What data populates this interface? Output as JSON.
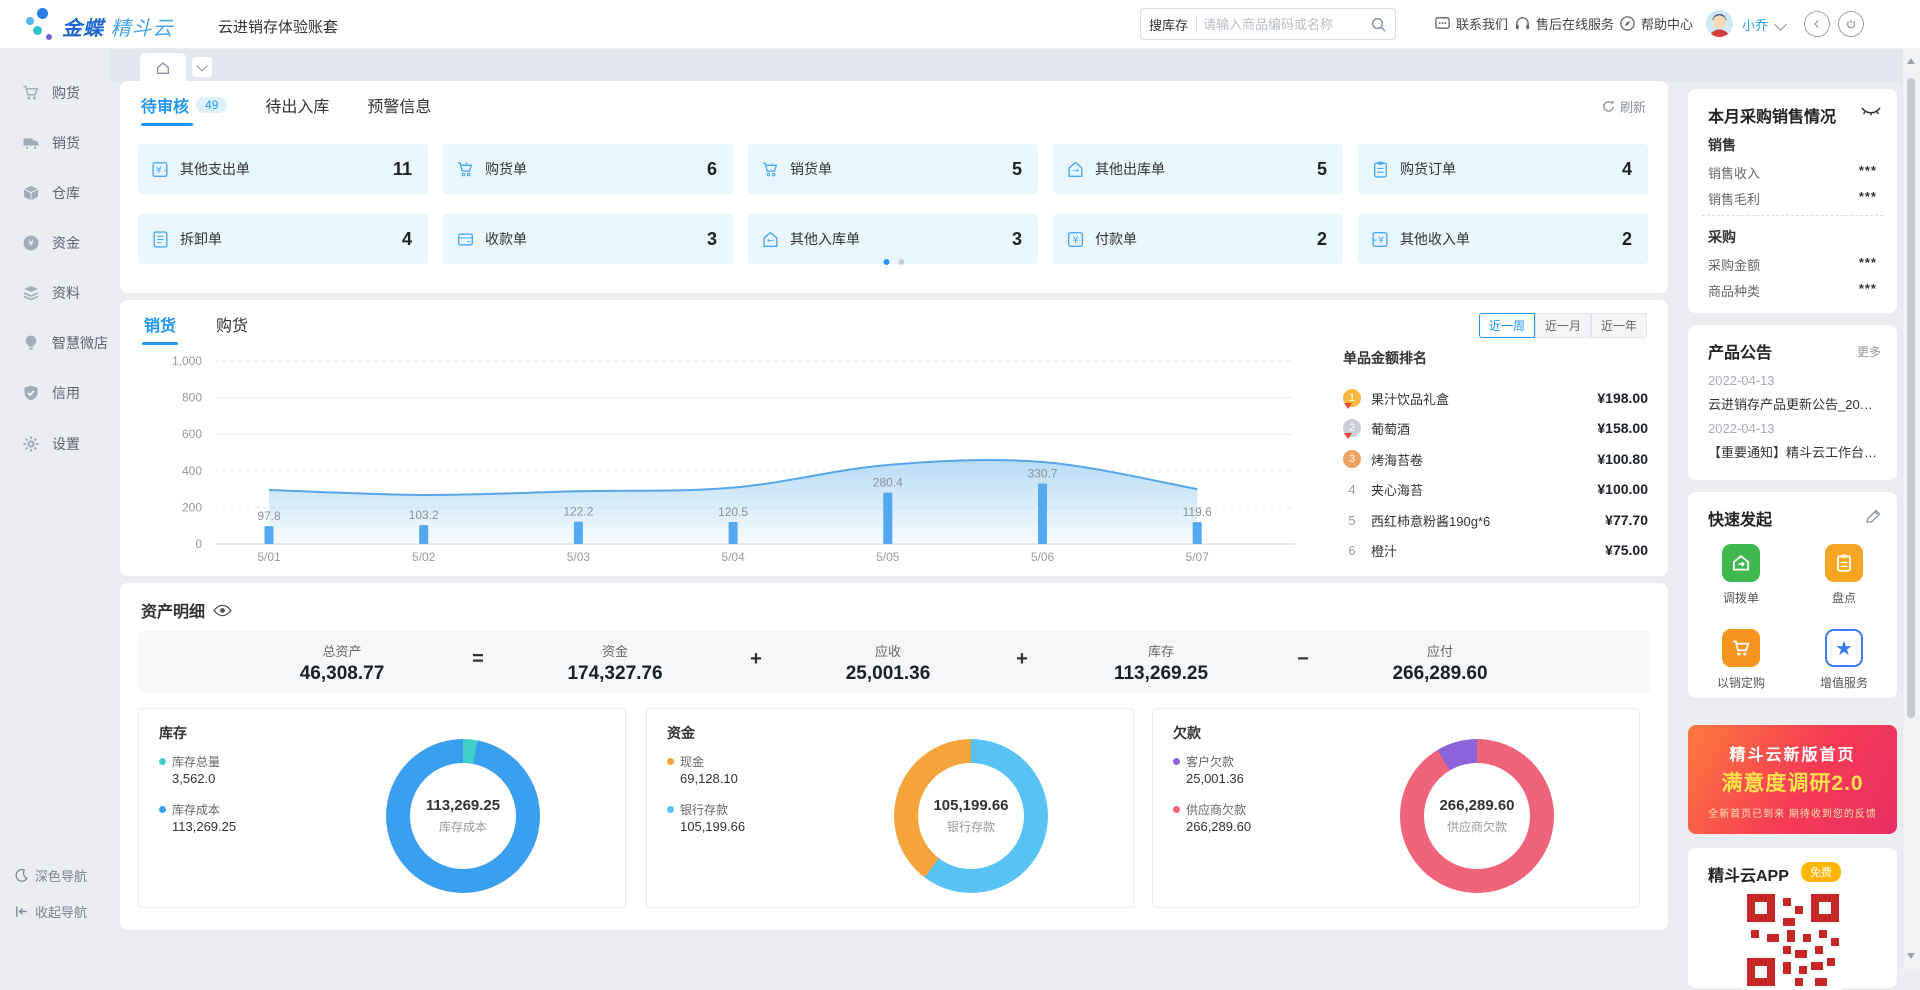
{
  "header": {
    "brand_bold": "金蝶",
    "brand_light": "精斗云",
    "account_title": "云进销存体验账套",
    "search": {
      "prefix": "搜库存",
      "placeholder": "请输入商品编码或名称"
    },
    "links": [
      {
        "label": "联系我们"
      },
      {
        "label": "售后在线服务"
      },
      {
        "label": "帮助中心"
      }
    ],
    "user": {
      "name": "小乔"
    }
  },
  "sidebar": {
    "items": [
      {
        "label": "购货"
      },
      {
        "label": "销货"
      },
      {
        "label": "仓库"
      },
      {
        "label": "资金"
      },
      {
        "label": "资料"
      },
      {
        "label": "智慧微店"
      },
      {
        "label": "信用"
      },
      {
        "label": "设置"
      }
    ],
    "footer": [
      {
        "label": "深色导航"
      },
      {
        "label": "收起导航"
      }
    ]
  },
  "pending": {
    "tabs": [
      {
        "label": "待审核",
        "badge": "49"
      },
      {
        "label": "待出入库"
      },
      {
        "label": "预警信息"
      }
    ],
    "refresh_label": "刷新",
    "cards": [
      {
        "label": "其他支出单",
        "count": "11"
      },
      {
        "label": "购货单",
        "count": "6"
      },
      {
        "label": "销货单",
        "count": "5"
      },
      {
        "label": "其他出库单",
        "count": "5"
      },
      {
        "label": "购货订单",
        "count": "4"
      },
      {
        "label": "拆卸单",
        "count": "4"
      },
      {
        "label": "收款单",
        "count": "3"
      },
      {
        "label": "其他入库单",
        "count": "3"
      },
      {
        "label": "付款单",
        "count": "2"
      },
      {
        "label": "其他收入单",
        "count": "2"
      }
    ]
  },
  "trend": {
    "tabs": [
      {
        "label": "销货"
      },
      {
        "label": "购货"
      }
    ],
    "ranges": [
      {
        "label": "近一周"
      },
      {
        "label": "近一月"
      },
      {
        "label": "近一年"
      }
    ],
    "active_range": "近一周",
    "chart_data": {
      "type": "bar+area",
      "x": [
        "5/01",
        "5/02",
        "5/03",
        "5/04",
        "5/05",
        "5/06",
        "5/07"
      ],
      "bars": [
        97.8,
        103.2,
        122.2,
        120.5,
        280.4,
        330.7,
        119.6
      ],
      "area_trend": [
        295,
        268,
        288,
        308,
        432,
        448,
        300
      ],
      "ylim": [
        0,
        1000
      ],
      "yticks": [
        {
          "v": 0,
          "label": "0"
        },
        {
          "v": 200,
          "label": "200"
        },
        {
          "v": 400,
          "label": "400"
        },
        {
          "v": 600,
          "label": "600"
        },
        {
          "v": 800,
          "label": "800"
        },
        {
          "v": 1000,
          "label": "1,000"
        }
      ],
      "bar_color": "#53a8ef",
      "line_color": "#58a6ea",
      "area_color": "#9fd0f3",
      "tick_color": "#999999",
      "bar_label_color": "#8a8f99"
    },
    "ranking": {
      "title": "单品金额排名",
      "items": [
        {
          "rank": "1",
          "name": "果汁饮品礼盒",
          "price": "¥198.00"
        },
        {
          "rank": "2",
          "name": "葡萄酒",
          "price": "¥158.00"
        },
        {
          "rank": "3",
          "name": "烤海苔卷",
          "price": "¥100.80"
        },
        {
          "rank": "4",
          "name": "夹心海苔",
          "price": "¥100.00"
        },
        {
          "rank": "5",
          "name": "西红柿意粉酱190g*6",
          "price": "¥77.70"
        },
        {
          "rank": "6",
          "name": "橙汁",
          "price": "¥75.00"
        }
      ]
    }
  },
  "assets": {
    "title": "资产明细",
    "summary": [
      {
        "label": "总资产",
        "value": "46,308.77"
      },
      {
        "label": "资金",
        "value": "174,327.76"
      },
      {
        "label": "应收",
        "value": "25,001.36"
      },
      {
        "label": "库存",
        "value": "113,269.25"
      },
      {
        "label": "应付",
        "value": "266,289.60"
      }
    ],
    "operators": [
      "=",
      "+",
      "+",
      "−"
    ],
    "donuts": [
      {
        "title": "库存",
        "legend": [
          {
            "label": "库存总量",
            "value": "3,562.0",
            "color": "#3ed0c9"
          },
          {
            "label": "库存成本",
            "value": "113,269.25",
            "color": "#3b9ff0"
          }
        ],
        "center_value": "113,269.25",
        "center_label": "库存成本",
        "slices": [
          {
            "color": "#3ed0c9",
            "pct": 3.05
          },
          {
            "color": "#3b9ff0",
            "pct": 96.95
          }
        ]
      },
      {
        "title": "资金",
        "legend": [
          {
            "label": "现金",
            "value": "69,128.10",
            "color": "#f5a43c"
          },
          {
            "label": "银行存款",
            "value": "105,199.66",
            "color": "#57c2f3"
          }
        ],
        "center_value": "105,199.66",
        "center_label": "银行存款",
        "slices": [
          {
            "color": "#57c2f3",
            "pct": 60.35
          },
          {
            "color": "#f5a43c",
            "pct": 39.65
          }
        ]
      },
      {
        "title": "欠款",
        "legend": [
          {
            "label": "客户欠款",
            "value": "25,001.36",
            "color": "#8a64d8"
          },
          {
            "label": "供应商欠款",
            "value": "266,289.60",
            "color": "#f0647a"
          }
        ],
        "center_value": "266,289.60",
        "center_label": "供应商欠款",
        "slices": [
          {
            "color": "#f0647a",
            "pct": 91.42
          },
          {
            "color": "#8a64d8",
            "pct": 8.58
          }
        ]
      }
    ]
  },
  "right_panel": {
    "monthly": {
      "title": "本月采购销售情况",
      "groups": [
        {
          "title": "销售",
          "rows": [
            {
              "label": "销售收入",
              "value": "***"
            },
            {
              "label": "销售毛利",
              "value": "***"
            }
          ]
        },
        {
          "title": "采购",
          "rows": [
            {
              "label": "采购金额",
              "value": "***"
            },
            {
              "label": "商品种类",
              "value": "***"
            }
          ]
        }
      ]
    },
    "announcements": {
      "title": "产品公告",
      "more": "更多",
      "items": [
        {
          "date": "2022-04-13",
          "text": "云进销存产品更新公告_20220..."
        },
        {
          "date": "2022-04-13",
          "text": "【重要通知】精斗云工作台域..."
        }
      ]
    },
    "quick": {
      "title": "快速发起",
      "items": [
        {
          "label": "调拨单",
          "color": "#3fb94f"
        },
        {
          "label": "盘点",
          "color": "#f6a623"
        },
        {
          "label": "以销定购",
          "color": "#f7941e"
        },
        {
          "label": "增值服务",
          "color": "#3a7bf0"
        }
      ]
    },
    "banner": {
      "line1": "精斗云新版首页",
      "line2": "满意度调研2.0",
      "line3": "全新首页已到来 期待收到您的反馈"
    },
    "app": {
      "title": "精斗云APP",
      "badge": "免费"
    }
  }
}
